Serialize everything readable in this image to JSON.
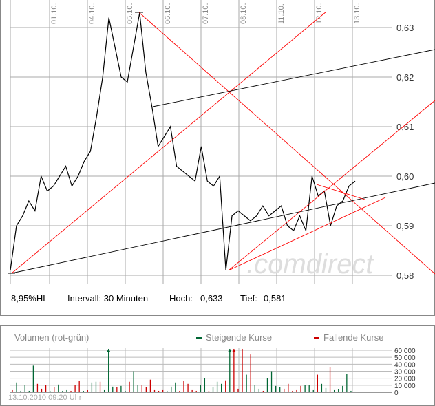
{
  "chart_data": [
    {
      "type": "line",
      "x_tick_labels": [
        "01.10.",
        "04.10.",
        "05.10.",
        "06.10.",
        "07.10.",
        "08.10.",
        "11.10.",
        "12.10.",
        "13.10."
      ],
      "y_tick_labels": [
        "0,63",
        "0,62",
        "0,61",
        "0,60",
        "0,59",
        "0,58"
      ],
      "y_ticks": [
        0.63,
        0.62,
        0.61,
        0.6,
        0.59,
        0.58
      ],
      "ylim": [
        0.58,
        0.633
      ],
      "grid": true,
      "series": [
        {
          "values": [
            0.581,
            0.59,
            0.592,
            0.595,
            0.593,
            0.6,
            0.597,
            0.598,
            0.6,
            0.602,
            0.598,
            0.6,
            0.603,
            0.605,
            0.612,
            0.62,
            0.632,
            0.626,
            0.62,
            0.619,
            0.626,
            0.633,
            0.621,
            0.614,
            0.606,
            0.608,
            0.61,
            0.602,
            0.601,
            0.6,
            0.599,
            0.606,
            0.599,
            0.598,
            0.6,
            0.581,
            0.592,
            0.593,
            0.592,
            0.591,
            0.592,
            0.594,
            0.592,
            0.593,
            0.594,
            0.59,
            0.589,
            0.592,
            0.589,
            0.6,
            0.596,
            0.597,
            0.59,
            0.594,
            0.595,
            0.598,
            0.599
          ]
        }
      ],
      "colors": {
        "price": "#000000",
        "trendline_red": "#ff0000",
        "trendline_black": "#000000"
      }
    },
    {
      "type": "bar",
      "title": "Volumen (rot-grün)",
      "legend": [
        {
          "name": "Steigende Kurse",
          "color": "#006633"
        },
        {
          "name": "Fallende Kurse",
          "color": "#cc0000"
        }
      ],
      "legend_placement": "top-right",
      "y_tick_labels": [
        "60.000",
        "50.000",
        "40.000",
        "30.000",
        "20.000",
        "10.000",
        "0"
      ],
      "ylim": [
        0,
        60000
      ],
      "values": [
        3000,
        14000,
        2000,
        10000,
        2000,
        38000,
        12000,
        5000,
        10000,
        2000,
        7000,
        11000,
        2000,
        3000,
        2000,
        10000,
        16000,
        2000,
        3000,
        14000,
        15000,
        15000,
        3000,
        62000,
        8000,
        7000,
        9000,
        2000,
        15000,
        30000,
        10000,
        10000,
        7000,
        18000,
        3000,
        2000,
        3000,
        2000,
        8000,
        14000,
        2000,
        16000,
        12000,
        3000,
        2000,
        10000,
        20000,
        2000,
        7000,
        15000,
        12000,
        17000,
        62000,
        62000,
        5000,
        62000,
        25000,
        54000,
        10000,
        5000,
        2000,
        20000,
        30000,
        9000,
        7000,
        5000,
        12000,
        2000,
        3000,
        9000,
        10000,
        10000,
        3000,
        25000,
        12000,
        6000,
        36000,
        3000,
        4000,
        9000,
        26000,
        2000,
        1000
      ],
      "directions": [
        "d",
        "u",
        "u",
        "u",
        "u",
        "u",
        "d",
        "d",
        "d",
        "u",
        "d",
        "u",
        "u",
        "u",
        "d",
        "d",
        "d",
        "u",
        "d",
        "u",
        "u",
        "d",
        "u",
        "u",
        "u",
        "d",
        "u",
        "u",
        "d",
        "u",
        "u",
        "d",
        "d",
        "d",
        "d",
        "d",
        "d",
        "u",
        "u",
        "u",
        "d",
        "d",
        "d",
        "d",
        "d",
        "u",
        "u",
        "d",
        "u",
        "u",
        "u",
        "d",
        "u",
        "d",
        "d",
        "d",
        "u",
        "d",
        "u",
        "u",
        "d",
        "u",
        "u",
        "u",
        "u",
        "d",
        "d",
        "d",
        "d",
        "d",
        "u",
        "u",
        "u",
        "d",
        "u",
        "u",
        "d",
        "u",
        "u",
        "u",
        "u",
        "u",
        "u"
      ],
      "clipped_markers": [
        "04.10. u",
        "11.10. u",
        "11.10. d"
      ]
    }
  ],
  "info": {
    "hl": "8,95%HL",
    "interval": "Intervall: 30 Minuten",
    "high_label": "Hoch:",
    "high": "0,633",
    "low_label": "Tief:",
    "low": "0,581"
  },
  "watermark": ".comdirect",
  "timestamp": "13.10.2010 09:20 Uhr"
}
